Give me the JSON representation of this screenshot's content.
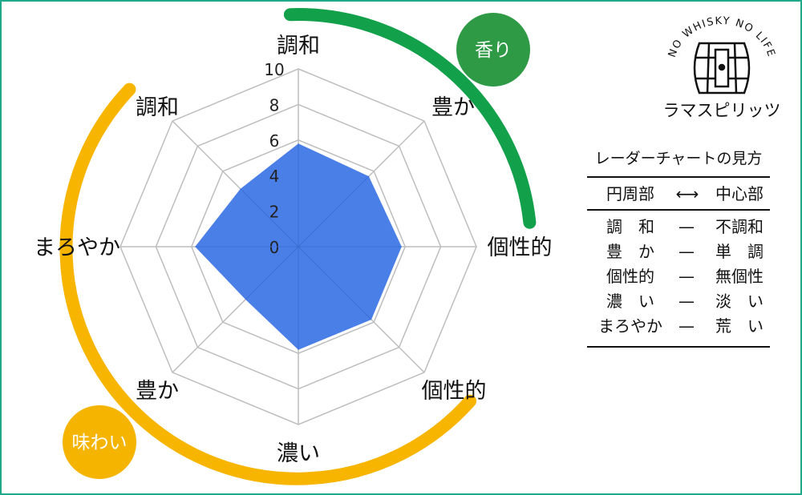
{
  "chart_data": {
    "type": "radar",
    "categories": [
      "調和",
      "豊か",
      "個性的",
      "個性的",
      "濃い",
      "豊か",
      "まろやか",
      "調和"
    ],
    "values": [
      5.8,
      5.6,
      5.8,
      5.8,
      5.8,
      4.2,
      5.8,
      4.6
    ],
    "ylim": [
      0,
      10
    ],
    "ticks": [
      "0",
      "2",
      "4",
      "6",
      "8",
      "10"
    ],
    "tick_values": [
      0,
      2,
      4,
      6,
      8,
      10
    ],
    "fill_color": "#4a7fe8",
    "grid_color": "#bdbdbd",
    "groups": [
      {
        "label": "香り",
        "color": "#12a04a",
        "badge_color": "#2e9a45"
      },
      {
        "label": "味わい",
        "color": "#f7b500",
        "badge_color": "#f5b400"
      }
    ]
  },
  "brand": {
    "arc_text": "NO WHISKY NO LIFE",
    "name": "ラマスピリッツ"
  },
  "legend": {
    "title": "レーダーチャートの見方",
    "header_left": "円周部",
    "header_arrow": "⟷",
    "header_right": "中心部",
    "rows": [
      {
        "left": "調　和",
        "dash": "—",
        "right": "不調和"
      },
      {
        "left": "豊　か",
        "dash": "—",
        "right": "単　調"
      },
      {
        "left": "個性的",
        "dash": "—",
        "right": "無個性"
      },
      {
        "left": "濃　い",
        "dash": "—",
        "right": "淡　い"
      },
      {
        "left": "まろやか",
        "dash": "—",
        "right": "荒　い"
      }
    ]
  }
}
